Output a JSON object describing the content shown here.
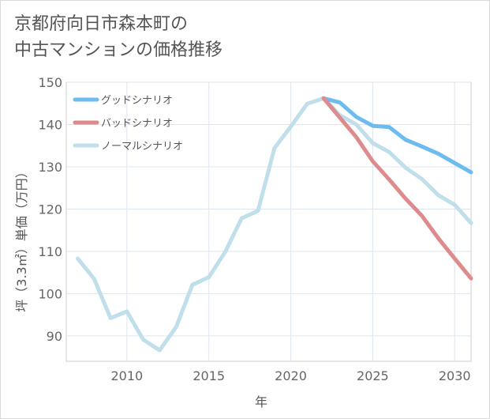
{
  "title_lines": [
    "京都府向日市森本町の",
    "中古マンションの価格推移"
  ],
  "chart_data": {
    "type": "line",
    "title": "京都府向日市森本町の中古マンションの価格推移",
    "xlabel": "年",
    "ylabel": "坪（3.3㎡）単価（万円）",
    "xlim": [
      2006.3,
      2031
    ],
    "ylim": [
      84,
      150
    ],
    "x_ticks": [
      2010,
      2015,
      2020,
      2025,
      2030
    ],
    "y_ticks": [
      90,
      100,
      110,
      120,
      130,
      140,
      150
    ],
    "grid": true,
    "legend_position": "top-left",
    "series": [
      {
        "name": "グッドシナリオ",
        "color": "#6dbcf0",
        "x": [
          2022,
          2023,
          2024,
          2025,
          2026,
          2027,
          2028,
          2029,
          2030,
          2031
        ],
        "y": [
          146.2,
          145.2,
          141.8,
          139.7,
          139.4,
          136.4,
          134.8,
          133.1,
          130.9,
          128.7
        ]
      },
      {
        "name": "バッドシナリオ",
        "color": "#dd8b8d",
        "x": [
          2022,
          2023,
          2024,
          2025,
          2026,
          2027,
          2028,
          2029,
          2030,
          2031
        ],
        "y": [
          146.2,
          141.6,
          137.0,
          131.3,
          127.0,
          122.5,
          118.4,
          113.1,
          108.3,
          103.6
        ]
      },
      {
        "name": "ノーマルシナリオ",
        "color": "#c0dfeb",
        "x": [
          2007,
          2008,
          2009,
          2010,
          2011,
          2012,
          2013,
          2014,
          2015,
          2016,
          2017,
          2018,
          2019,
          2020,
          2021,
          2022,
          2023,
          2024,
          2025,
          2026,
          2027,
          2028,
          2029,
          2030,
          2031
        ],
        "y": [
          108.3,
          103.5,
          94.2,
          95.8,
          89.1,
          86.6,
          92.1,
          102.1,
          103.9,
          109.9,
          117.8,
          119.6,
          134.4,
          139.5,
          144.9,
          146.2,
          142.2,
          140.0,
          135.6,
          133.5,
          129.8,
          127.1,
          123.3,
          121.0,
          116.7
        ]
      }
    ]
  }
}
